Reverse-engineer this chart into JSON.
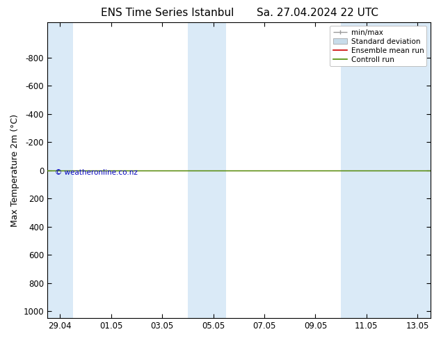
{
  "title_left": "ENS Time Series Istanbul",
  "title_right": "Sa. 27.04.2024 22 UTC",
  "ylabel": "Max Temperature 2m (°C)",
  "ylim_top": -1050,
  "ylim_bottom": 1050,
  "yticks": [
    -800,
    -600,
    -400,
    -200,
    0,
    200,
    400,
    600,
    800,
    1000
  ],
  "xtick_labels": [
    "29.04",
    "01.05",
    "03.05",
    "05.05",
    "07.05",
    "09.05",
    "11.05",
    "13.05"
  ],
  "xtick_positions": [
    0.5,
    2.5,
    4.5,
    6.5,
    8.5,
    10.5,
    12.5,
    14.5
  ],
  "xlim": [
    0,
    15
  ],
  "shaded_bands": [
    [
      0.0,
      1.0
    ],
    [
      5.5,
      6.5
    ],
    [
      6.5,
      7.0
    ],
    [
      11.5,
      13.0
    ],
    [
      13.0,
      15.0
    ]
  ],
  "band_color": "#daeaf7",
  "green_line_y": 0,
  "green_line_color": "#4a8c00",
  "red_line_y": 0,
  "red_line_color": "#cc0000",
  "copyright_text": "© weatheronline.co.nz",
  "copyright_color": "#0000bb",
  "background_color": "#ffffff",
  "grid_color": "#cccccc",
  "legend_fontsize": 7.5,
  "title_fontsize": 11,
  "label_fontsize": 9,
  "tick_fontsize": 8.5
}
